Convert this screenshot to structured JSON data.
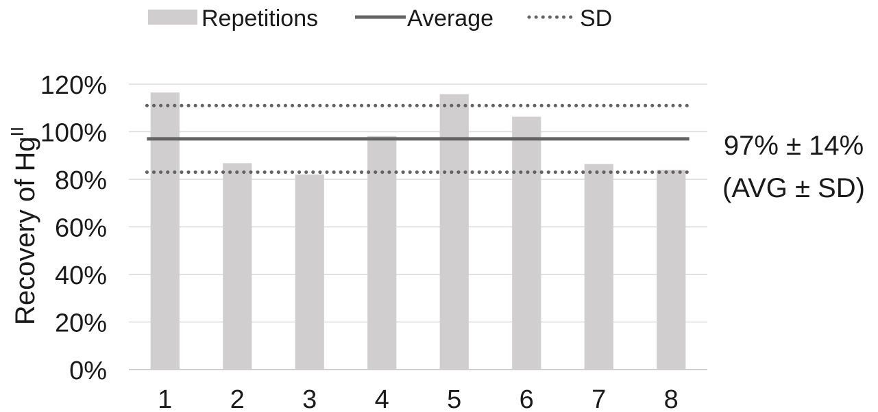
{
  "chart_data": {
    "type": "bar",
    "title": "",
    "xlabel": "",
    "ylabel": "Recovery of Hg",
    "ylabel_superscript": "II",
    "categories": [
      "1",
      "2",
      "3",
      "4",
      "5",
      "6",
      "7",
      "8"
    ],
    "series": [
      {
        "name": "Repetitions",
        "type": "bar",
        "color": "#d0cece",
        "values": [
          1.165,
          0.868,
          0.82,
          0.982,
          1.158,
          1.063,
          0.864,
          0.84
        ]
      }
    ],
    "reference_lines": [
      {
        "name": "Average",
        "value": 0.97,
        "style": "solid",
        "color": "#636363"
      },
      {
        "name": "SD",
        "values": [
          1.11,
          0.83
        ],
        "style": "dotted",
        "color": "#636363"
      }
    ],
    "ylim": [
      0,
      1.2
    ],
    "yticks": [
      "0%",
      "20%",
      "40%",
      "60%",
      "80%",
      "100%",
      "120%"
    ],
    "grid": true,
    "legend_position": "top",
    "legend": [
      "Repetitions",
      "Average",
      "SD"
    ],
    "annotation": {
      "line1": "97% ± 14%",
      "line2": "(AVG ± SD)"
    }
  }
}
